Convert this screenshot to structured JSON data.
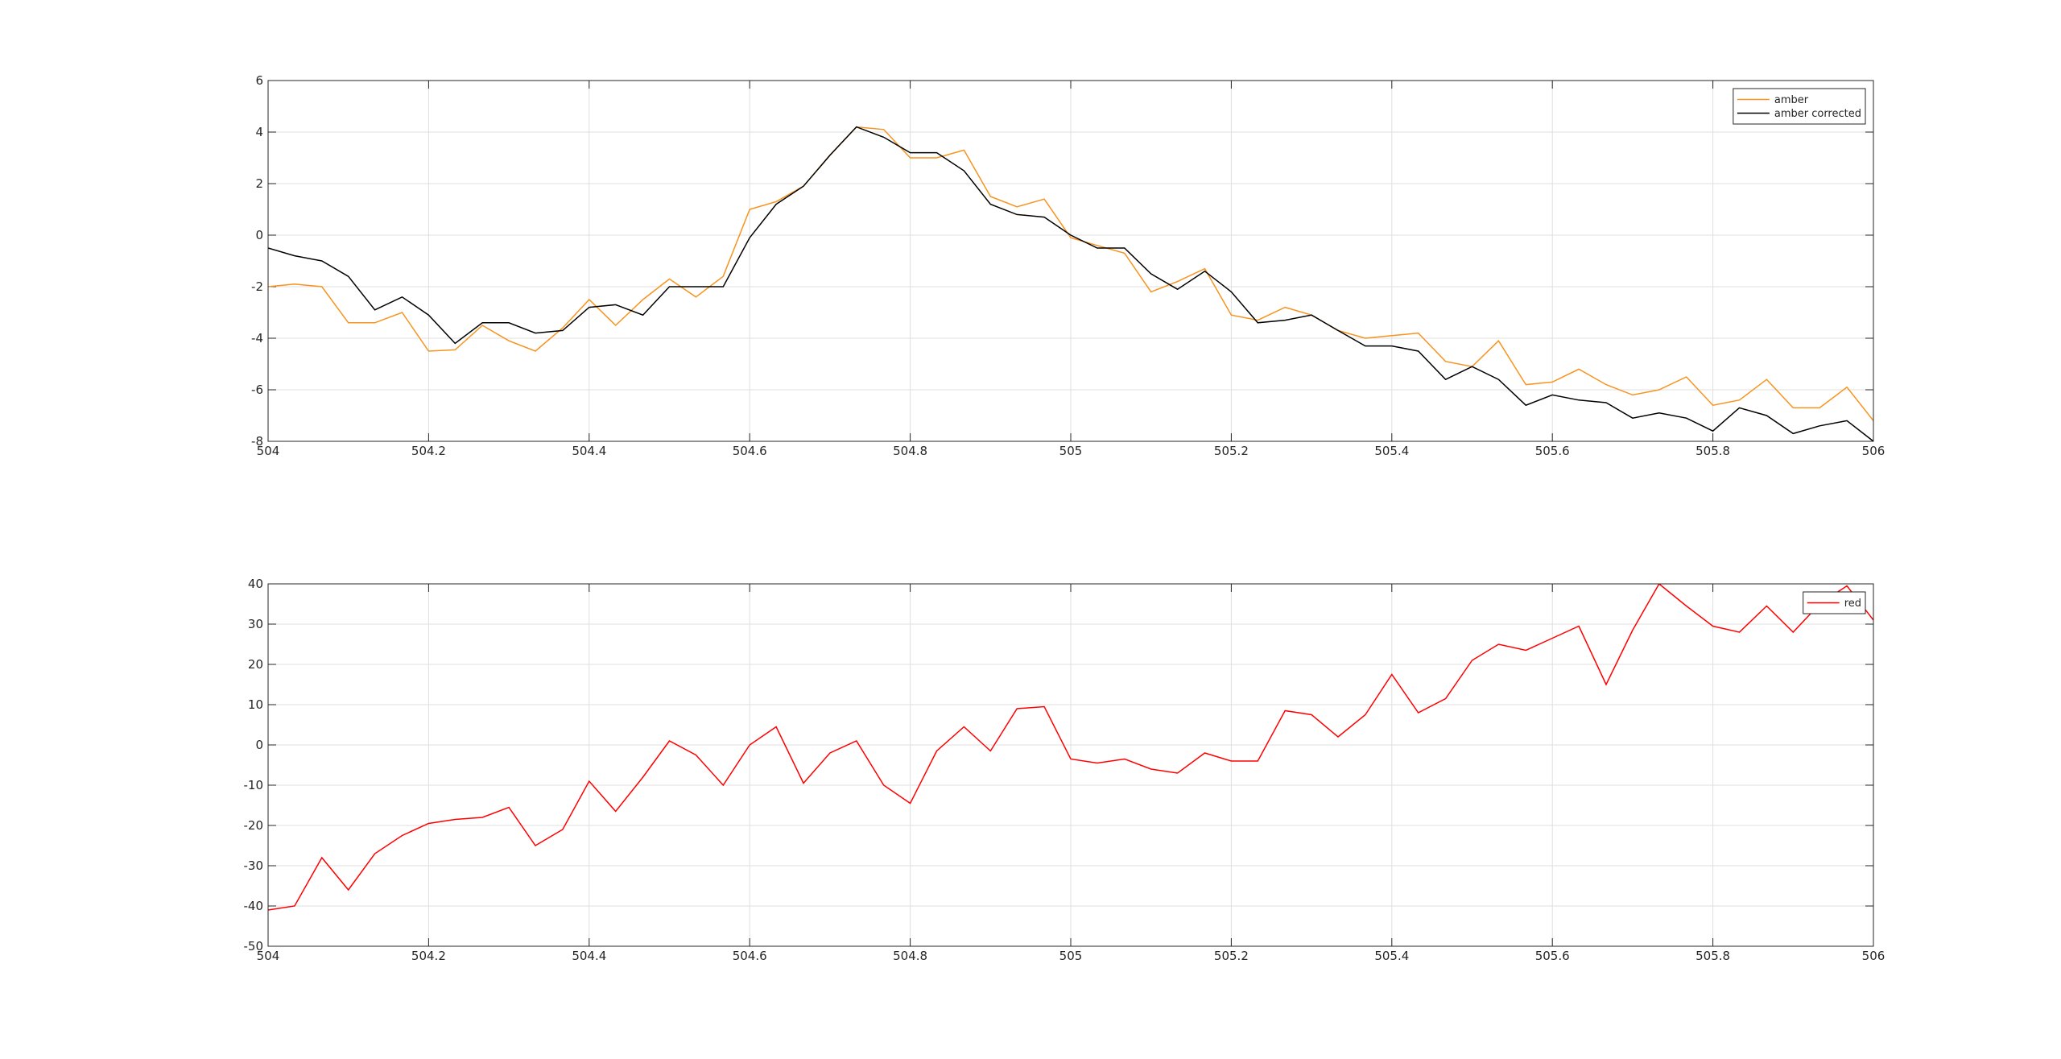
{
  "chart_data": [
    {
      "type": "line",
      "x": [
        504,
        504.033,
        504.067,
        504.1,
        504.133,
        504.167,
        504.2,
        504.233,
        504.267,
        504.3,
        504.333,
        504.367,
        504.4,
        504.433,
        504.467,
        504.5,
        504.533,
        504.567,
        504.6,
        504.633,
        504.667,
        504.7,
        504.733,
        504.767,
        504.8,
        504.833,
        504.867,
        504.9,
        504.933,
        504.967,
        505,
        505.033,
        505.067,
        505.1,
        505.133,
        505.167,
        505.2,
        505.233,
        505.267,
        505.3,
        505.333,
        505.367,
        505.4,
        505.433,
        505.467,
        505.5,
        505.533,
        505.567,
        505.6,
        505.633,
        505.667,
        505.7,
        505.733,
        505.767,
        505.8,
        505.833,
        505.867,
        505.9,
        505.933,
        505.967,
        506
      ],
      "series": [
        {
          "name": "amber",
          "color": "#f7931e",
          "values": [
            -2.0,
            -1.9,
            -2.0,
            -3.4,
            -3.4,
            -3.0,
            -4.5,
            -4.45,
            -3.5,
            -4.1,
            -4.5,
            -3.6,
            -2.5,
            -3.5,
            -2.5,
            -1.7,
            -2.4,
            -1.6,
            1.0,
            1.3,
            1.9,
            3.1,
            4.2,
            4.1,
            3.0,
            3.0,
            3.3,
            1.5,
            1.1,
            1.4,
            -0.1,
            -0.4,
            -0.7,
            -2.2,
            -1.8,
            -1.3,
            -3.1,
            -3.3,
            -2.8,
            -3.1,
            -3.7,
            -4.0,
            -3.9,
            -3.8,
            -4.9,
            -5.1,
            -4.1,
            -5.8,
            -5.7,
            -5.2,
            -5.8,
            -6.2,
            -6.0,
            -5.5,
            -6.6,
            -6.4,
            -5.6,
            -6.7,
            -6.7,
            -5.9,
            -7.2
          ]
        },
        {
          "name": "amber corrected",
          "color": "#000000",
          "values": [
            -0.5,
            -0.8,
            -1.0,
            -1.6,
            -2.9,
            -2.4,
            -3.1,
            -4.2,
            -3.4,
            -3.4,
            -3.8,
            -3.7,
            -2.8,
            -2.7,
            -3.1,
            -2.0,
            -2.0,
            -2.0,
            -0.1,
            1.2,
            1.9,
            3.1,
            4.2,
            3.8,
            3.2,
            3.2,
            2.5,
            1.2,
            0.8,
            0.7,
            0.0,
            -0.5,
            -0.5,
            -1.5,
            -2.1,
            -1.4,
            -2.2,
            -3.4,
            -3.3,
            -3.1,
            -3.7,
            -4.3,
            -4.3,
            -4.5,
            -5.6,
            -5.1,
            -5.6,
            -6.6,
            -6.2,
            -6.4,
            -6.5,
            -7.1,
            -6.9,
            -7.1,
            -7.6,
            -6.7,
            -7.0,
            -7.7,
            -7.4,
            -7.2,
            -8.0
          ]
        }
      ],
      "xlim": [
        504,
        506
      ],
      "xticks": [
        504,
        504.2,
        504.4,
        504.6,
        504.8,
        505,
        505.2,
        505.4,
        505.6,
        505.8,
        506
      ],
      "ylim": [
        -8,
        6
      ],
      "yticks": [
        -8,
        -6,
        -4,
        -2,
        0,
        2,
        4,
        6
      ],
      "grid": true,
      "legend": "northeast"
    },
    {
      "type": "line",
      "x": [
        504,
        504.033,
        504.067,
        504.1,
        504.133,
        504.167,
        504.2,
        504.233,
        504.267,
        504.3,
        504.333,
        504.367,
        504.4,
        504.433,
        504.467,
        504.5,
        504.533,
        504.567,
        504.6,
        504.633,
        504.667,
        504.7,
        504.733,
        504.767,
        504.8,
        504.833,
        504.867,
        504.9,
        504.933,
        504.967,
        505,
        505.033,
        505.067,
        505.1,
        505.133,
        505.167,
        505.2,
        505.233,
        505.267,
        505.3,
        505.333,
        505.367,
        505.4,
        505.433,
        505.467,
        505.5,
        505.533,
        505.567,
        505.6,
        505.633,
        505.667,
        505.7,
        505.733,
        505.767,
        505.8,
        505.833,
        505.867,
        505.9,
        505.933,
        505.967,
        506
      ],
      "series": [
        {
          "name": "red",
          "color": "#ff0000",
          "values": [
            -41,
            -40,
            -28,
            -36,
            -27,
            -22.5,
            -19.5,
            -18.5,
            -18,
            -15.5,
            -25,
            -21,
            -9,
            -16.5,
            -8,
            1,
            -2.5,
            -10,
            0,
            4.5,
            -9.5,
            -2,
            1,
            -10,
            -14.5,
            -1.5,
            4.5,
            -1.5,
            9,
            9.5,
            -3.5,
            -4.5,
            -3.5,
            -6,
            -7,
            -2,
            -4,
            -4,
            8.5,
            7.5,
            2,
            7.5,
            17.5,
            8,
            11.5,
            21,
            25,
            23.5,
            26.5,
            29.5,
            15,
            28.5,
            40,
            34.5,
            29.5,
            28,
            34.5,
            28,
            35,
            39.5,
            31
          ]
        }
      ],
      "xlim": [
        504,
        506
      ],
      "xticks": [
        504,
        504.2,
        504.4,
        504.6,
        504.8,
        505,
        505.2,
        505.4,
        505.6,
        505.8,
        506
      ],
      "ylim": [
        -50,
        40
      ],
      "yticks": [
        -50,
        -40,
        -30,
        -20,
        -10,
        0,
        10,
        20,
        30,
        40
      ],
      "grid": true,
      "legend": "northeast"
    }
  ]
}
